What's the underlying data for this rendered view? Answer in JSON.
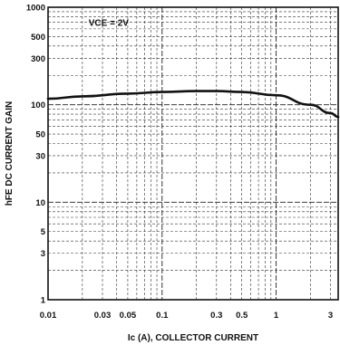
{
  "chart_data": {
    "type": "line",
    "title": "",
    "xlabel": "Ic (A), COLLECTOR CURRENT",
    "ylabel": "hFE DC CURRENT GAIN",
    "xscale": "log",
    "yscale": "log",
    "xlim": [
      0.01,
      3.5
    ],
    "ylim": [
      1,
      1000
    ],
    "grid": true,
    "x_ticks": [
      {
        "value": 0.01,
        "label": "0.01"
      },
      {
        "value": 0.03,
        "label": "0.03"
      },
      {
        "value": 0.05,
        "label": "0.05"
      },
      {
        "value": 0.1,
        "label": "0.1"
      },
      {
        "value": 0.3,
        "label": "0.3"
      },
      {
        "value": 0.5,
        "label": "0.5"
      },
      {
        "value": 1,
        "label": "1"
      },
      {
        "value": 3,
        "label": "3"
      }
    ],
    "y_ticks": [
      {
        "value": 1,
        "label": "1"
      },
      {
        "value": 3,
        "label": "3"
      },
      {
        "value": 5,
        "label": "5"
      },
      {
        "value": 10,
        "label": "10"
      },
      {
        "value": 30,
        "label": "30"
      },
      {
        "value": 50,
        "label": "50"
      },
      {
        "value": 100,
        "label": "100"
      },
      {
        "value": 300,
        "label": "300"
      },
      {
        "value": 500,
        "label": "500"
      },
      {
        "value": 1000,
        "label": "1000"
      }
    ],
    "annotation": "VCE = 2V",
    "series": [
      {
        "x": [
          0.01,
          0.02,
          0.05,
          0.1,
          0.2,
          0.3,
          0.5,
          1,
          2,
          3,
          3.5
        ],
        "y": [
          115,
          122,
          130,
          135,
          138,
          138,
          135,
          125,
          100,
          82,
          75
        ]
      }
    ]
  }
}
